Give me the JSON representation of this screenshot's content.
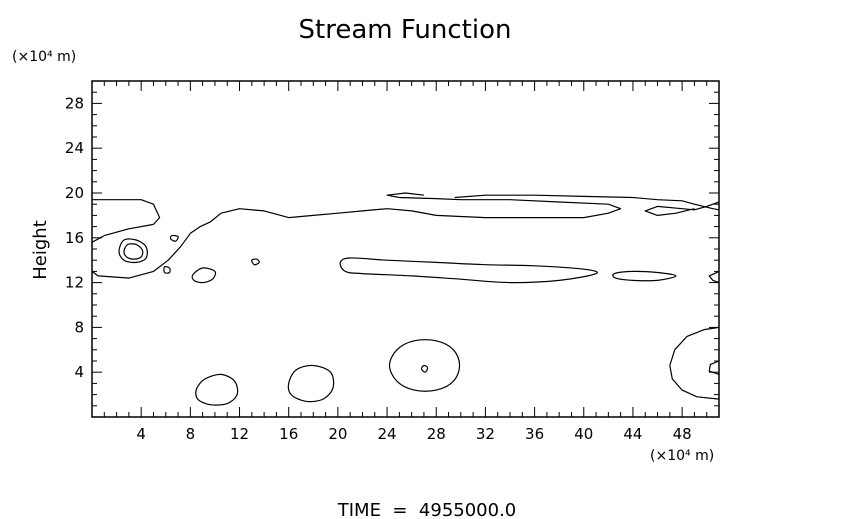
{
  "chart_data": {
    "type": "contour",
    "title": "Stream Function",
    "ylabel": "Height",
    "x_unit_label": "(×10⁴ m)",
    "y_unit_label": "(×10⁴ m)",
    "xlim": [
      0,
      51
    ],
    "ylim": [
      0,
      30
    ],
    "x_ticks": [
      4,
      8,
      12,
      16,
      20,
      24,
      28,
      32,
      36,
      40,
      44,
      48
    ],
    "y_ticks": [
      4,
      8,
      12,
      16,
      20,
      24,
      28
    ],
    "footer": "TIME  =  4955000.0",
    "contours": [
      {
        "closed": false,
        "points": [
          [
            0,
            19.4
          ],
          [
            4,
            19.4
          ],
          [
            5,
            19
          ],
          [
            5.5,
            17.8
          ],
          [
            5,
            17.2
          ],
          [
            3,
            16.8
          ],
          [
            1,
            16.2
          ],
          [
            0,
            15.6
          ]
        ]
      },
      {
        "closed": false,
        "points": [
          [
            0,
            13
          ],
          [
            0.5,
            12.6
          ],
          [
            3,
            12.4
          ],
          [
            5,
            13
          ],
          [
            6.2,
            14
          ],
          [
            7.2,
            15.2
          ],
          [
            8,
            16.4
          ],
          [
            8.8,
            17
          ],
          [
            9.6,
            17.4
          ],
          [
            10.5,
            18.2
          ],
          [
            12,
            18.6
          ],
          [
            14,
            18.4
          ],
          [
            16,
            17.8
          ],
          [
            18,
            18
          ],
          [
            20,
            18.2
          ],
          [
            22,
            18.4
          ],
          [
            24,
            18.6
          ],
          [
            26,
            18.4
          ],
          [
            28,
            18
          ],
          [
            32,
            17.8
          ],
          [
            36,
            17.8
          ],
          [
            40,
            17.8
          ],
          [
            42,
            18.2
          ],
          [
            43,
            18.6
          ],
          [
            42,
            19
          ],
          [
            38,
            19.2
          ],
          [
            34,
            19.4
          ],
          [
            30,
            19.4
          ],
          [
            28,
            19.5
          ],
          [
            25,
            19.6
          ],
          [
            24,
            19.8
          ],
          [
            25.5,
            20
          ],
          [
            27,
            19.8
          ]
        ]
      },
      {
        "closed": false,
        "points": [
          [
            29.5,
            19.6
          ],
          [
            32,
            19.8
          ],
          [
            36,
            19.8
          ],
          [
            40,
            19.7
          ],
          [
            44,
            19.6
          ],
          [
            46,
            19.4
          ],
          [
            48,
            19.3
          ],
          [
            49,
            19
          ],
          [
            50.5,
            18.6
          ],
          [
            51,
            18.5
          ]
        ]
      },
      {
        "closed": false,
        "points": [
          [
            51,
            19.2
          ],
          [
            50,
            18.8
          ],
          [
            49,
            18.5
          ],
          [
            48,
            18.6
          ],
          [
            46,
            18.8
          ],
          [
            45,
            18.4
          ],
          [
            46,
            18
          ],
          [
            47.5,
            18.2
          ],
          [
            49,
            18.6
          ]
        ]
      },
      {
        "closed": true,
        "points": [
          [
            2.6,
            15.8
          ],
          [
            3.6,
            15.8
          ],
          [
            4.4,
            15.2
          ],
          [
            4.4,
            14.2
          ],
          [
            3.6,
            13.8
          ],
          [
            2.6,
            14
          ],
          [
            2.2,
            14.8
          ]
        ]
      },
      {
        "closed": true,
        "points": [
          [
            2.9,
            15.4
          ],
          [
            3.6,
            15.4
          ],
          [
            4.1,
            14.9
          ],
          [
            4,
            14.3
          ],
          [
            3.4,
            14.1
          ],
          [
            2.8,
            14.3
          ],
          [
            2.6,
            14.8
          ]
        ]
      },
      {
        "closed": true,
        "points": [
          [
            5.9,
            13.4
          ],
          [
            6.3,
            13.3
          ],
          [
            6.3,
            12.9
          ],
          [
            5.9,
            12.9
          ]
        ]
      },
      {
        "closed": true,
        "points": [
          [
            6.5,
            16.2
          ],
          [
            7,
            16.1
          ],
          [
            6.8,
            15.7
          ],
          [
            6.4,
            15.9
          ]
        ]
      },
      {
        "closed": true,
        "points": [
          [
            8.2,
            12.7
          ],
          [
            9,
            13.3
          ],
          [
            10,
            13
          ],
          [
            9.8,
            12.3
          ],
          [
            9,
            12
          ],
          [
            8.3,
            12.2
          ]
        ]
      },
      {
        "closed": true,
        "points": [
          [
            13,
            14
          ],
          [
            13.4,
            14.1
          ],
          [
            13.6,
            13.8
          ],
          [
            13.2,
            13.6
          ]
        ]
      },
      {
        "closed": true,
        "points": [
          [
            20.2,
            13.8
          ],
          [
            21,
            14.2
          ],
          [
            24,
            14
          ],
          [
            28,
            13.8
          ],
          [
            32,
            13.6
          ],
          [
            36,
            13.5
          ],
          [
            40,
            13.2
          ],
          [
            41,
            12.8
          ],
          [
            38,
            12.2
          ],
          [
            34,
            12
          ],
          [
            30,
            12.3
          ],
          [
            26,
            12.6
          ],
          [
            22,
            12.8
          ],
          [
            20.6,
            13
          ]
        ]
      },
      {
        "closed": true,
        "points": [
          [
            42.5,
            12.8
          ],
          [
            44,
            13
          ],
          [
            46,
            12.9
          ],
          [
            47.5,
            12.6
          ],
          [
            46,
            12.2
          ],
          [
            44,
            12.2
          ],
          [
            42.6,
            12.4
          ]
        ]
      },
      {
        "closed": false,
        "points": [
          [
            51,
            13
          ],
          [
            50.2,
            12.6
          ],
          [
            50.5,
            12.2
          ],
          [
            51,
            12
          ]
        ]
      },
      {
        "closed": true,
        "points": [
          [
            8.5,
            2.5
          ],
          [
            9.2,
            3.4
          ],
          [
            10.5,
            3.8
          ],
          [
            11.6,
            3.2
          ],
          [
            11.8,
            2
          ],
          [
            11,
            1.2
          ],
          [
            9.6,
            1.1
          ],
          [
            8.6,
            1.6
          ]
        ]
      },
      {
        "closed": true,
        "points": [
          [
            16,
            3
          ],
          [
            16.6,
            4.2
          ],
          [
            18,
            4.6
          ],
          [
            19.4,
            4
          ],
          [
            19.6,
            2.6
          ],
          [
            18.8,
            1.6
          ],
          [
            17.4,
            1.4
          ],
          [
            16.2,
            2
          ]
        ]
      },
      {
        "closed": true,
        "points": [
          [
            24.2,
            4.6
          ],
          [
            24.8,
            6
          ],
          [
            26.2,
            6.8
          ],
          [
            28,
            6.8
          ],
          [
            29.4,
            6
          ],
          [
            29.9,
            4.6
          ],
          [
            29.4,
            3.2
          ],
          [
            28,
            2.4
          ],
          [
            26.2,
            2.4
          ],
          [
            24.8,
            3.2
          ]
        ]
      },
      {
        "closed": true,
        "points": [
          [
            26.8,
            4.3
          ],
          [
            27,
            4.6
          ],
          [
            27.3,
            4.4
          ],
          [
            27.1,
            4
          ]
        ]
      },
      {
        "closed": false,
        "points": [
          [
            51,
            8
          ],
          [
            49.8,
            7.8
          ],
          [
            48.4,
            7.2
          ],
          [
            47.4,
            6
          ],
          [
            47,
            4.6
          ],
          [
            47.2,
            3.4
          ],
          [
            48,
            2.4
          ],
          [
            49.2,
            1.8
          ],
          [
            51,
            1.6
          ]
        ]
      },
      {
        "closed": false,
        "points": [
          [
            51,
            5
          ],
          [
            50.3,
            4.7
          ],
          [
            50.2,
            4.1
          ],
          [
            51,
            3.8
          ]
        ]
      }
    ]
  }
}
